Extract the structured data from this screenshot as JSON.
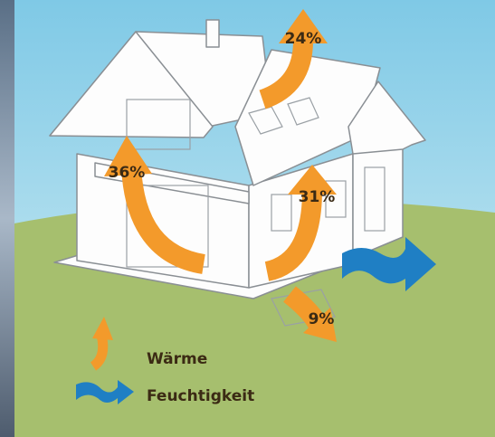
{
  "labels": [
    {
      "text": "24%"
    },
    {
      "text": "36%"
    },
    {
      "text": "31%"
    },
    {
      "text": "9%"
    }
  ],
  "legend": [
    {
      "text": "Wärme"
    },
    {
      "text": "Feuchtigkeit"
    }
  ]
}
